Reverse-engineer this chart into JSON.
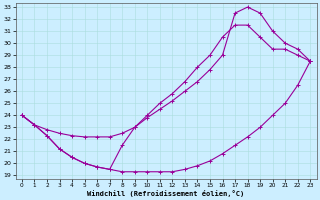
{
  "xlabel": "Windchill (Refroidissement éolien,°C)",
  "bg_color": "#cceeff",
  "line_color": "#990099",
  "xlim": [
    -0.5,
    23.5
  ],
  "ylim": [
    19,
    33
  ],
  "xticks": [
    0,
    1,
    2,
    3,
    4,
    5,
    6,
    7,
    8,
    9,
    10,
    11,
    12,
    13,
    14,
    15,
    16,
    17,
    18,
    19,
    20,
    21,
    22,
    23
  ],
  "yticks": [
    19,
    20,
    21,
    22,
    23,
    24,
    25,
    26,
    27,
    28,
    29,
    30,
    31,
    32,
    33
  ],
  "line1_x": [
    0,
    1,
    2,
    3,
    4,
    5,
    6,
    7,
    8,
    9,
    10,
    11,
    12,
    13,
    14,
    15,
    16,
    17,
    18,
    19,
    20,
    21,
    22,
    23
  ],
  "line1_y": [
    24.0,
    23.2,
    22.3,
    21.2,
    20.5,
    20.0,
    19.7,
    19.5,
    19.3,
    19.3,
    19.3,
    19.3,
    19.3,
    19.5,
    19.8,
    20.2,
    20.8,
    21.5,
    22.2,
    23.0,
    24.0,
    25.0,
    26.5,
    28.5
  ],
  "line2_x": [
    0,
    1,
    2,
    3,
    4,
    5,
    6,
    7,
    8,
    9,
    10,
    11,
    12,
    13,
    14,
    15,
    16,
    17,
    18,
    19,
    20,
    21,
    22,
    23
  ],
  "line2_y": [
    24.0,
    23.2,
    22.3,
    21.2,
    20.5,
    20.0,
    19.7,
    19.5,
    21.5,
    23.0,
    24.0,
    25.0,
    25.8,
    26.8,
    28.0,
    29.0,
    30.5,
    31.5,
    31.5,
    30.5,
    29.5,
    29.5,
    29.0,
    28.5
  ],
  "line3_x": [
    0,
    1,
    2,
    3,
    4,
    5,
    6,
    7,
    8,
    9,
    10,
    11,
    12,
    13,
    14,
    15,
    16,
    17,
    18,
    19,
    20,
    21,
    22,
    23
  ],
  "line3_y": [
    24.0,
    23.2,
    22.8,
    22.5,
    22.3,
    22.2,
    22.2,
    22.2,
    22.5,
    23.0,
    23.8,
    24.5,
    25.2,
    26.0,
    26.8,
    27.8,
    29.0,
    32.5,
    33.0,
    32.5,
    31.0,
    30.0,
    29.5,
    28.5
  ],
  "marker": "+"
}
